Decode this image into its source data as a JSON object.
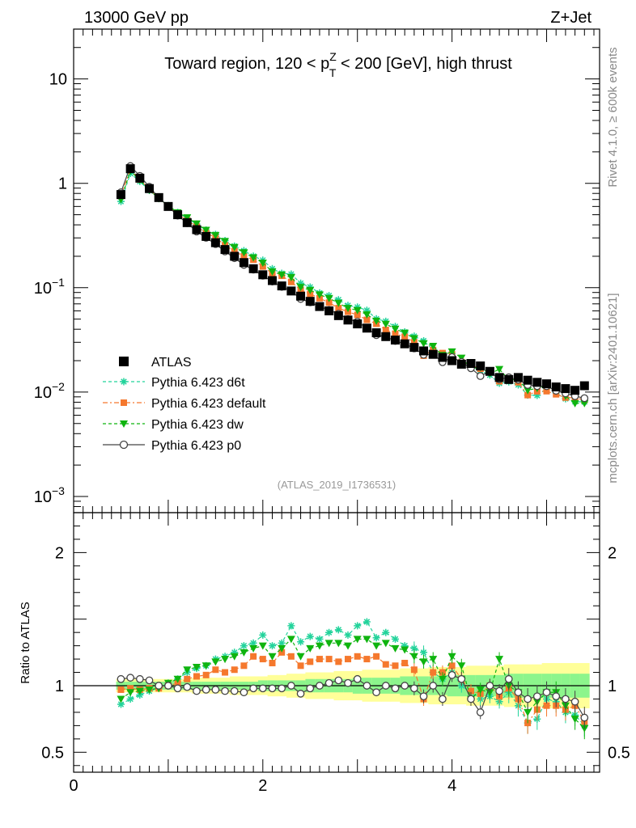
{
  "header": {
    "energy_label": "13000 GeV pp",
    "process_label": "Z+Jet"
  },
  "side_text": {
    "rivet": "Rivet 4.1.0, ≥ 600k events",
    "mcplots": "mcplots.cern.ch [arXiv:2401.10621]"
  },
  "colors": {
    "atlas": "#000000",
    "d6t": "#22d39b",
    "default": "#f5782d",
    "dw": "#0fb40f",
    "p0": "#444444",
    "band_outer": "#ffff99",
    "band_inner": "#8cf58c"
  },
  "chart_data": [
    {
      "type": "scatter",
      "title": "Toward region, 120 < p_T^Z < 200 [GeV], high thrust",
      "title_parts": {
        "pre": "Toward region, 120 < p",
        "sup": "Z",
        "sub": "T",
        "post": " < 200 [GeV], high thrust"
      },
      "annotation": "(ATLAS_2019_I1736531)",
      "yscale": "log",
      "ylim": [
        0.0007,
        30
      ],
      "xlim": [
        0,
        5.56
      ],
      "y_ticks": [
        {
          "value": 10,
          "label": "10"
        },
        {
          "value": 1,
          "label": "1"
        },
        {
          "value": 0.1,
          "base": "10",
          "exp": "−1"
        },
        {
          "value": 0.01,
          "base": "10",
          "exp": "−2"
        },
        {
          "value": 0.001,
          "base": "10",
          "exp": "−3"
        }
      ],
      "x": [
        0.5,
        0.6,
        0.7,
        0.8,
        0.9,
        1.0,
        1.1,
        1.2,
        1.3,
        1.4,
        1.5,
        1.6,
        1.7,
        1.8,
        1.9,
        2.0,
        2.1,
        2.2,
        2.3,
        2.4,
        2.5,
        2.6,
        2.7,
        2.8,
        2.9,
        3.0,
        3.1,
        3.2,
        3.3,
        3.4,
        3.5,
        3.6,
        3.7,
        3.8,
        3.9,
        4.0,
        4.1,
        4.2,
        4.3,
        4.4,
        4.5,
        4.6,
        4.7,
        4.8,
        4.9,
        5.0,
        5.1,
        5.2,
        5.3,
        5.4
      ],
      "legend": [
        {
          "key": "atlas",
          "label": "ATLAS",
          "marker": "square"
        },
        {
          "key": "d6t",
          "label": "Pythia 6.423 d6t",
          "marker": "star"
        },
        {
          "key": "default",
          "label": "Pythia 6.423 default",
          "marker": "square"
        },
        {
          "key": "dw",
          "label": "Pythia 6.423 dw",
          "marker": "triangle-down"
        },
        {
          "key": "p0",
          "label": "Pythia 6.423 p0",
          "marker": "open-circle"
        }
      ],
      "atlas_values": [
        0.78,
        1.38,
        1.12,
        0.89,
        0.73,
        0.6,
        0.5,
        0.42,
        0.36,
        0.31,
        0.27,
        0.232,
        0.2,
        0.174,
        0.152,
        0.133,
        0.117,
        0.104,
        0.093,
        0.083,
        0.074,
        0.066,
        0.06,
        0.054,
        0.049,
        0.045,
        0.041,
        0.037,
        0.034,
        0.0315,
        0.029,
        0.0268,
        0.0248,
        0.023,
        0.0215,
        0.02,
        0.0185,
        0.0188,
        0.0178,
        0.0158,
        0.0138,
        0.0132,
        0.0138,
        0.013,
        0.0124,
        0.012,
        0.0112,
        0.0108,
        0.0104,
        0.0115
      ]
    },
    {
      "type": "scatter",
      "ylabel": "Ratio to ATLAS",
      "ylim": [
        0.35,
        2.3
      ],
      "xlim": [
        0,
        5.56
      ],
      "y_ticks": [
        0.5,
        1,
        2
      ],
      "x_ticks": [
        0,
        2,
        4
      ],
      "band_outer_halfwidth": [
        0.05,
        0.05,
        0.05,
        0.05,
        0.05,
        0.05,
        0.05,
        0.05,
        0.06,
        0.06,
        0.06,
        0.06,
        0.07,
        0.07,
        0.07,
        0.07,
        0.08,
        0.08,
        0.09,
        0.09,
        0.1,
        0.1,
        0.1,
        0.11,
        0.11,
        0.11,
        0.12,
        0.12,
        0.12,
        0.12,
        0.13,
        0.13,
        0.13,
        0.14,
        0.14,
        0.14,
        0.14,
        0.15,
        0.15,
        0.15,
        0.15,
        0.16,
        0.16,
        0.16,
        0.16,
        0.17,
        0.17,
        0.17,
        0.17,
        0.17
      ],
      "band_inner_halfwidth": [
        0.03,
        0.03,
        0.03,
        0.03,
        0.03,
        0.03,
        0.03,
        0.03,
        0.03,
        0.03,
        0.03,
        0.03,
        0.03,
        0.03,
        0.03,
        0.04,
        0.04,
        0.04,
        0.04,
        0.04,
        0.05,
        0.05,
        0.05,
        0.05,
        0.05,
        0.06,
        0.06,
        0.06,
        0.06,
        0.06,
        0.07,
        0.07,
        0.07,
        0.07,
        0.07,
        0.08,
        0.08,
        0.08,
        0.08,
        0.08,
        0.08,
        0.09,
        0.09,
        0.09,
        0.09,
        0.09,
        0.09,
        0.09,
        0.09,
        0.09
      ],
      "series": [
        {
          "key": "d6t",
          "name": "Pythia 6.423 d6t",
          "values": [
            0.86,
            0.9,
            0.93,
            0.96,
            0.98,
            1.02,
            1.05,
            1.1,
            1.13,
            1.15,
            1.2,
            1.22,
            1.25,
            1.3,
            1.32,
            1.38,
            1.3,
            1.32,
            1.45,
            1.33,
            1.37,
            1.35,
            1.4,
            1.42,
            1.38,
            1.45,
            1.48,
            1.36,
            1.4,
            1.35,
            1.3,
            1.28,
            1.25,
            1.1,
            1.05,
            1.1,
            1.0,
            0.95,
            0.9,
            0.92,
            0.88,
            0.95,
            0.85,
            0.72,
            0.75,
            0.9,
            0.88,
            0.8,
            0.78,
            0.7
          ]
        },
        {
          "key": "default",
          "name": "Pythia 6.423 default",
          "values": [
            0.97,
            0.98,
            0.97,
            0.98,
            0.98,
            1.0,
            1.02,
            1.05,
            1.07,
            1.08,
            1.12,
            1.1,
            1.12,
            1.15,
            1.22,
            1.2,
            1.17,
            1.25,
            1.22,
            1.15,
            1.18,
            1.2,
            1.2,
            1.18,
            1.2,
            1.22,
            1.2,
            1.22,
            1.16,
            1.15,
            1.17,
            1.12,
            0.9,
            1.1,
            1.1,
            1.15,
            1.05,
            0.96,
            0.94,
            1.0,
            0.92,
            0.98,
            0.9,
            0.72,
            0.82,
            0.85,
            0.85,
            0.82,
            0.85,
            0.73
          ]
        },
        {
          "key": "dw",
          "name": "Pythia 6.423 dw",
          "values": [
            0.9,
            0.95,
            0.96,
            0.97,
            0.98,
            1.02,
            1.05,
            1.12,
            1.14,
            1.15,
            1.18,
            1.2,
            1.22,
            1.25,
            1.28,
            1.3,
            1.22,
            1.28,
            1.35,
            1.22,
            1.28,
            1.3,
            1.32,
            1.32,
            1.3,
            1.35,
            1.35,
            1.3,
            1.32,
            1.28,
            1.27,
            1.22,
            1.18,
            1.2,
            1.05,
            1.22,
            1.15,
            0.9,
            0.97,
            0.95,
            1.2,
            1.0,
            0.95,
            0.8,
            0.88,
            0.95,
            0.95,
            0.85,
            0.75,
            0.68
          ]
        },
        {
          "key": "p0",
          "name": "Pythia 6.423 p0",
          "values": [
            1.05,
            1.06,
            1.05,
            1.04,
            1.0,
            1.0,
            0.98,
            0.99,
            0.96,
            0.97,
            0.97,
            0.96,
            0.96,
            0.95,
            0.98,
            0.98,
            0.98,
            0.98,
            1.0,
            0.94,
            0.98,
            1.0,
            1.02,
            1.04,
            1.02,
            1.05,
            1.0,
            0.95,
            1.0,
            0.98,
            1.0,
            0.98,
            0.92,
            1.0,
            0.9,
            1.08,
            1.05,
            0.9,
            0.8,
            1.0,
            0.96,
            1.05,
            0.95,
            0.9,
            0.92,
            0.95,
            0.92,
            0.9,
            0.88,
            0.76
          ]
        }
      ]
    }
  ]
}
